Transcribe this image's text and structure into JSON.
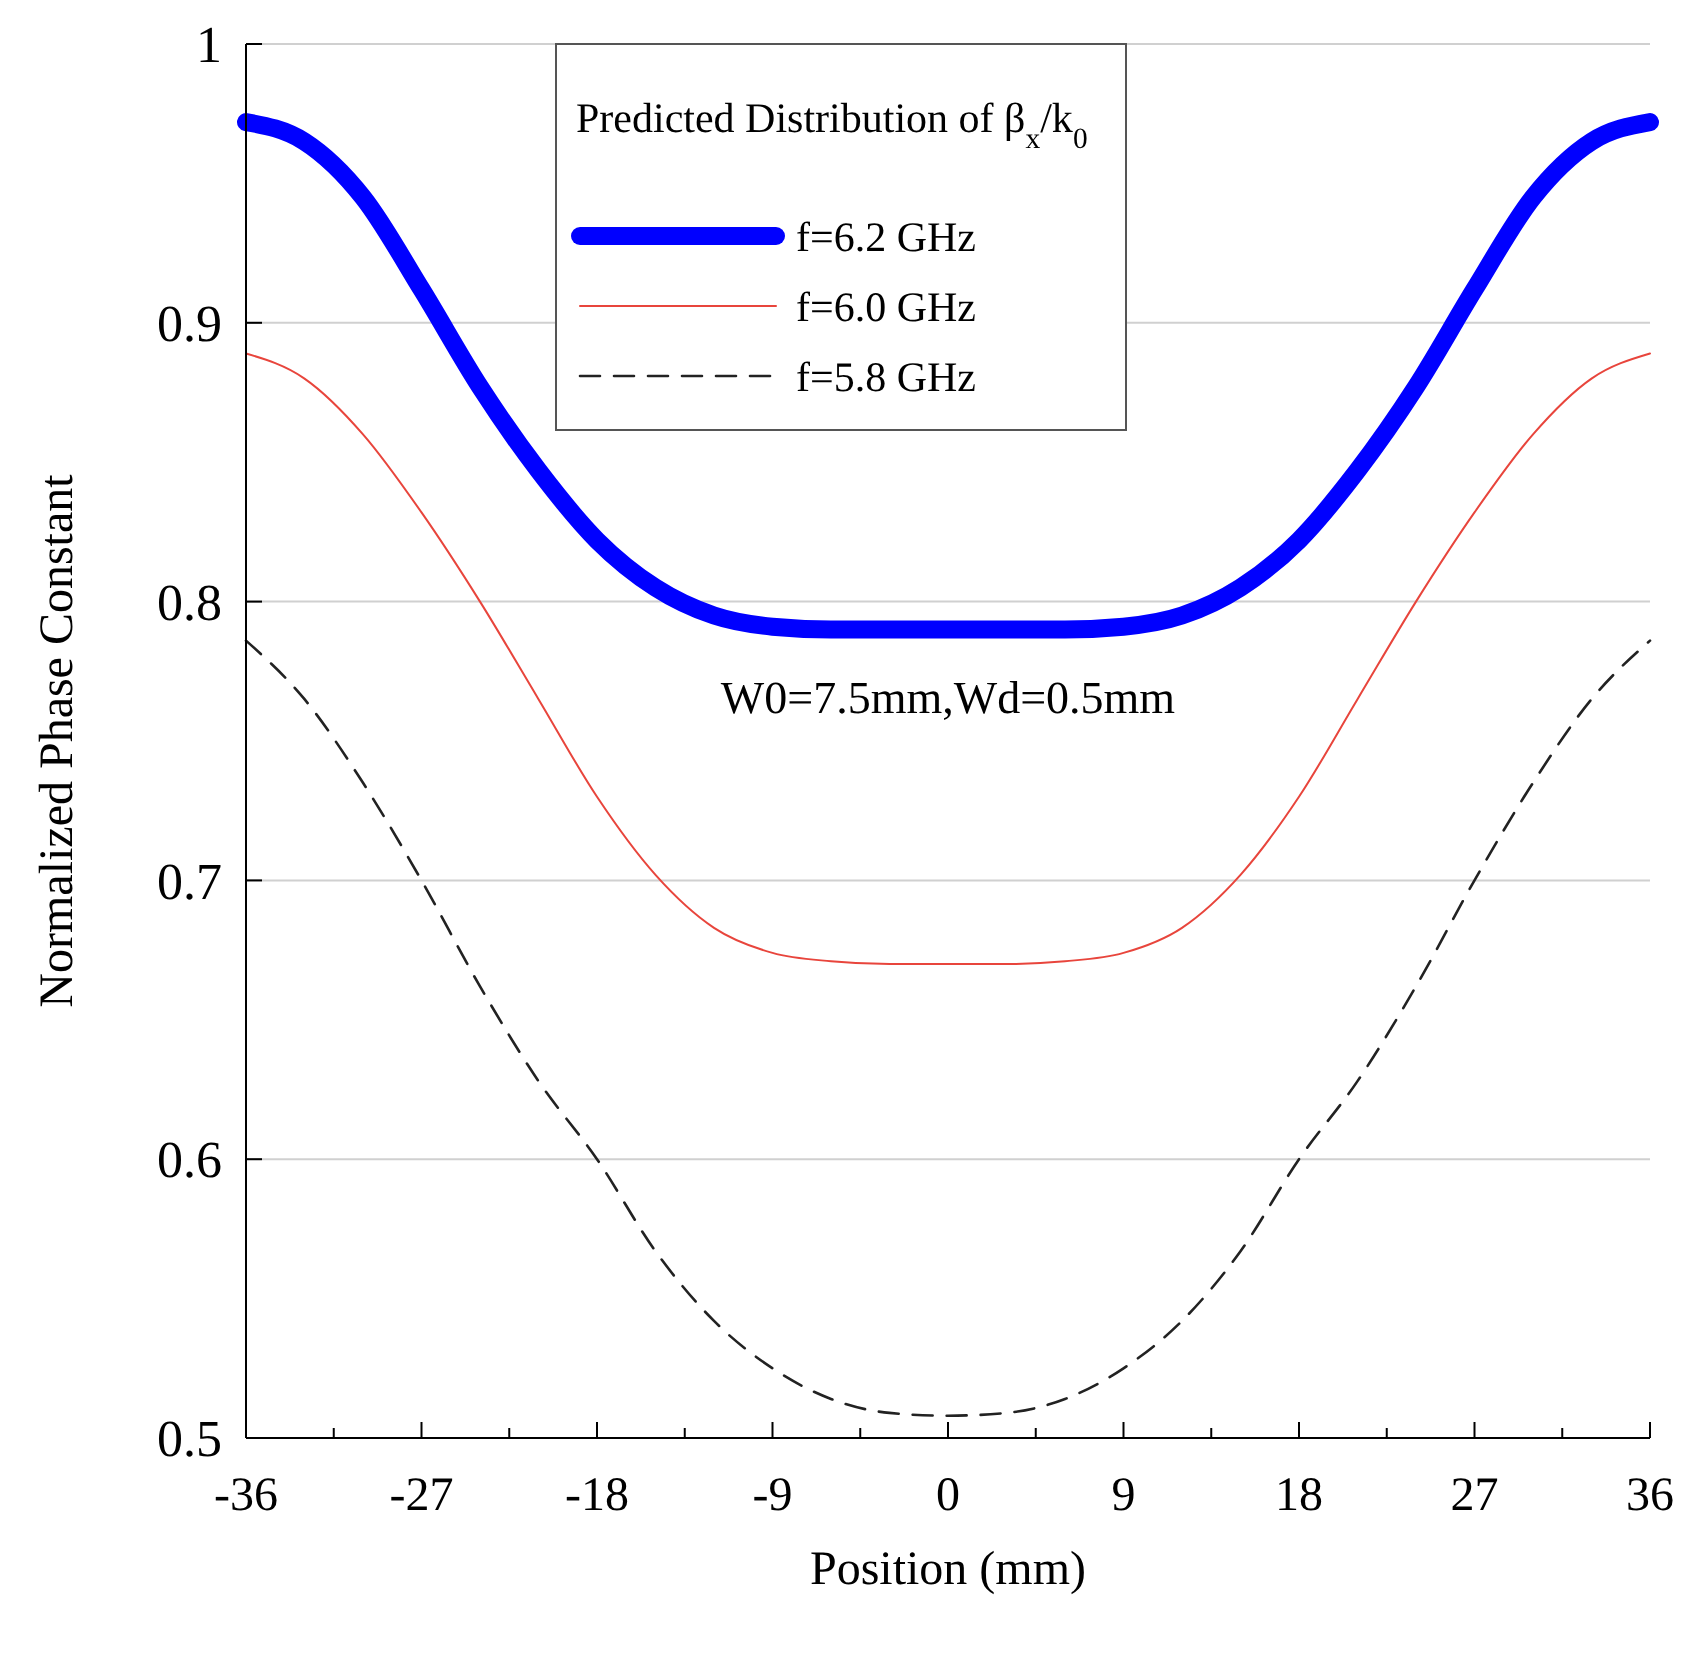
{
  "chart_data": {
    "type": "line",
    "xlabel": "Position (mm)",
    "ylabel": "Normalized Phase Constant",
    "legend_title": "Predicted Distribution of β$_{x}$/k$_{0}$",
    "annotations": [
      "W0=7.5mm,Wd=0.5mm"
    ],
    "x": [
      -36,
      -33,
      -30,
      -27,
      -24,
      -21,
      -18,
      -15,
      -12,
      -9,
      -6,
      -3,
      0,
      3,
      6,
      9,
      12,
      15,
      18,
      21,
      24,
      27,
      30,
      33,
      36
    ],
    "series": [
      {
        "name": "f=6.2 GHz",
        "color": "#0000ff",
        "line_style": "solid",
        "values": [
          0.972,
          0.965,
          0.945,
          0.912,
          0.877,
          0.847,
          0.822,
          0.805,
          0.795,
          0.791,
          0.79,
          0.79,
          0.79,
          0.79,
          0.79,
          0.791,
          0.795,
          0.805,
          0.822,
          0.847,
          0.877,
          0.912,
          0.945,
          0.965,
          0.972
        ]
      },
      {
        "name": "f=6.0 GHz",
        "color": "#e8453c",
        "line_style": "solid",
        "values": [
          0.889,
          0.88,
          0.86,
          0.832,
          0.8,
          0.765,
          0.73,
          0.702,
          0.683,
          0.674,
          0.671,
          0.67,
          0.67,
          0.67,
          0.671,
          0.674,
          0.683,
          0.702,
          0.73,
          0.765,
          0.8,
          0.832,
          0.86,
          0.88,
          0.889
        ]
      },
      {
        "name": "f=5.8 GHz",
        "color": "#222222",
        "line_style": "dashed",
        "values": [
          0.786,
          0.765,
          0.735,
          0.7,
          0.662,
          0.628,
          0.6,
          0.567,
          0.542,
          0.525,
          0.514,
          0.509,
          0.508,
          0.509,
          0.514,
          0.525,
          0.542,
          0.567,
          0.6,
          0.628,
          0.662,
          0.7,
          0.735,
          0.765,
          0.786
        ]
      }
    ],
    "xlim": [
      -36,
      36
    ],
    "ylim": [
      0.5,
      1
    ],
    "xticks": [
      -36,
      {
        "value": -31.5,
        "label": null
      },
      -27,
      {
        "value": -22.5,
        "label": null
      },
      -18,
      {
        "value": -13.5,
        "label": null
      },
      -9,
      {
        "value": -4.5,
        "label": null
      },
      0,
      {
        "value": 4.5,
        "label": null
      },
      9,
      {
        "value": 13.5,
        "label": null
      },
      18,
      {
        "value": 22.5,
        "label": null
      },
      27,
      {
        "value": 31.5,
        "label": null
      },
      36
    ],
    "yticks": [
      0.5,
      0.6,
      0.7,
      0.8,
      0.9,
      1
    ],
    "grid": "y",
    "legend": "top"
  }
}
